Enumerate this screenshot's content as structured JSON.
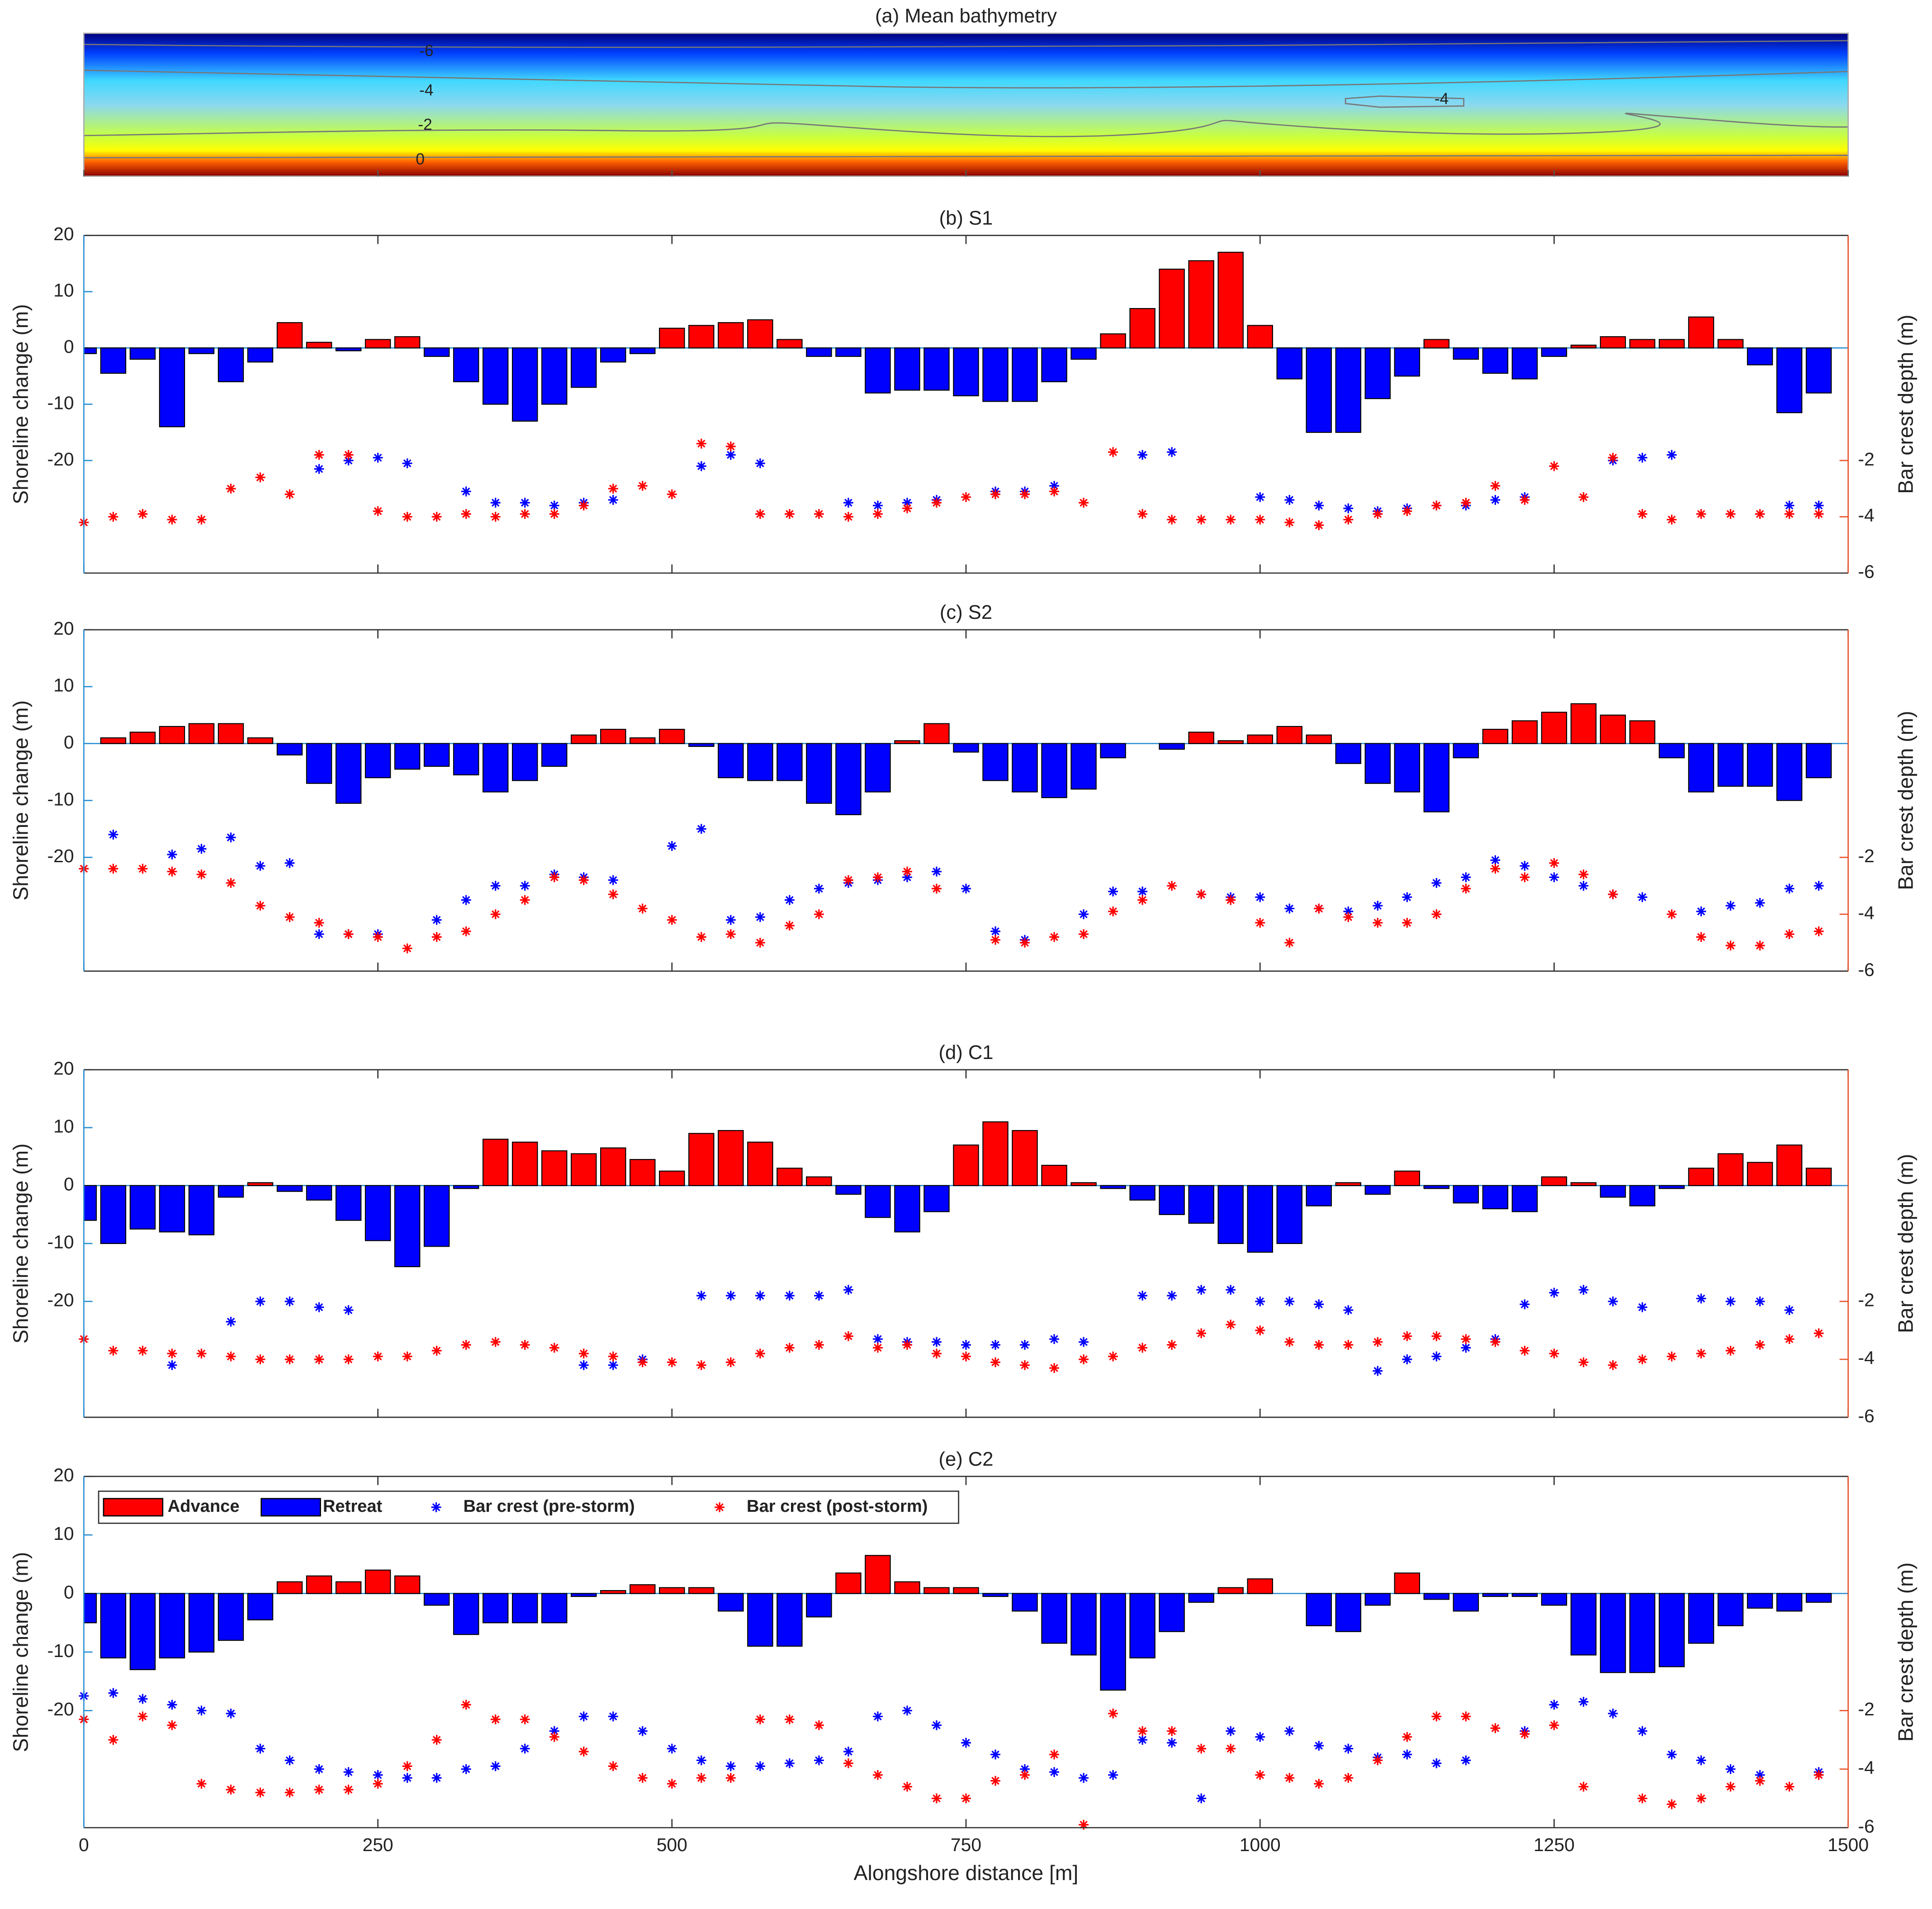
{
  "chart_data": [
    {
      "type": "heatmap",
      "title": "(a) Mean bathymetry",
      "contour_labels": [
        -6,
        -4,
        -2,
        0,
        -4
      ],
      "colormap": [
        "#00007a",
        "#0040ff",
        "#40d8ff",
        "#8ad8f0",
        "#c8ff40",
        "#ffff00",
        "#ff6000",
        "#8a0000"
      ],
      "xlim": [
        0,
        1500
      ],
      "xticks": [
        0,
        250,
        500,
        750,
        1000,
        1250,
        1500
      ]
    },
    {
      "type": "bar",
      "title": "(b) S1",
      "ylabel": "Shoreline change (m)",
      "y2label": "Bar crest depth (m)",
      "ycolor": "#2b8fd3",
      "y2color": "#e8552a",
      "advance_color": "#ff0000",
      "retreat_color": "#0000ff",
      "show_xtick_labels": false,
      "xlim": [
        0,
        1500
      ],
      "xticks": [
        0,
        250,
        500,
        750,
        1000,
        1250,
        1500
      ],
      "ylim": [
        -40,
        20
      ],
      "yticks": [
        -20,
        -10,
        0,
        10,
        20
      ],
      "y2lim": [
        -6,
        6
      ],
      "y2ticks": [
        -6,
        -4,
        -2
      ],
      "x": [
        0,
        25,
        50,
        75,
        100,
        125,
        150,
        175,
        200,
        225,
        250,
        275,
        300,
        325,
        350,
        375,
        400,
        425,
        450,
        475,
        500,
        525,
        550,
        575,
        600,
        625,
        650,
        675,
        700,
        725,
        750,
        775,
        800,
        825,
        850,
        875,
        900,
        925,
        950,
        975,
        1000,
        1025,
        1050,
        1075,
        1100,
        1125,
        1150,
        1175,
        1200,
        1225,
        1250,
        1275,
        1300,
        1325,
        1350,
        1375,
        1400,
        1425,
        1450,
        1475
      ],
      "values": [
        -1,
        -4.5,
        -2,
        -14,
        -1,
        -6,
        -2.5,
        4.5,
        1,
        -0.5,
        1.5,
        2,
        -1.5,
        -6,
        -10,
        -13,
        -10,
        -7,
        -2.5,
        -1,
        3.5,
        4,
        4.5,
        5,
        1.5,
        -1.5,
        -1.5,
        -8,
        -7.5,
        -7.5,
        -8.5,
        -9.5,
        -9.5,
        -6,
        -2,
        2.5,
        7,
        14,
        15.5,
        17,
        4,
        -5.5,
        -15,
        -15,
        -9,
        -5,
        1.5,
        -2,
        -4.5,
        -5.5,
        -1.5,
        0.5,
        2,
        1.5,
        1.5,
        5.5,
        1.5,
        -3,
        -11.5,
        -8
      ],
      "series": [
        {
          "color": "#0000ff",
          "axis": "y2",
          "values": [
            null,
            null,
            null,
            null,
            null,
            null,
            null,
            null,
            -2.3,
            -2.0,
            -1.9,
            -2.1,
            null,
            -3.1,
            -3.5,
            -3.5,
            -3.6,
            -3.5,
            -3.4,
            null,
            null,
            -2.2,
            -1.8,
            -2.1,
            null,
            null,
            -3.5,
            -3.6,
            -3.5,
            -3.4,
            null,
            -3.1,
            -3.1,
            -2.9,
            null,
            null,
            -1.8,
            -1.7,
            null,
            null,
            -3.3,
            -3.4,
            -3.6,
            -3.7,
            -3.8,
            -3.7,
            -3.6,
            -3.6,
            -3.4,
            -3.3,
            null,
            null,
            -2.0,
            -1.9,
            -1.8,
            null,
            null,
            null,
            -3.6,
            -3.6
          ]
        },
        {
          "color": "#ff0000",
          "axis": "y2",
          "values": [
            -4.2,
            -4.0,
            -3.9,
            -4.1,
            -4.1,
            -3.0,
            -2.6,
            -3.2,
            -1.8,
            -1.8,
            -3.8,
            -4.0,
            -4.0,
            -3.9,
            -4.0,
            -3.9,
            -3.9,
            -3.6,
            -3.0,
            -2.9,
            -3.2,
            -1.4,
            -1.5,
            -3.9,
            -3.9,
            -3.9,
            -4.0,
            -3.9,
            -3.7,
            -3.5,
            -3.3,
            -3.2,
            -3.2,
            -3.1,
            -3.5,
            -1.7,
            -3.9,
            -4.1,
            -4.1,
            -4.1,
            -4.1,
            -4.2,
            -4.3,
            -4.1,
            -3.9,
            -3.8,
            -3.6,
            -3.5,
            -2.9,
            -3.4,
            -2.2,
            -3.3,
            -1.9,
            -3.9,
            -4.1,
            -3.9,
            -3.9,
            -3.9,
            -3.9,
            -3.9
          ]
        }
      ]
    },
    {
      "type": "bar",
      "title": "(c) S2",
      "ylabel": "Shoreline change (m)",
      "y2label": "Bar crest depth (m)",
      "ycolor": "#2b8fd3",
      "y2color": "#e8552a",
      "advance_color": "#ff0000",
      "retreat_color": "#0000ff",
      "show_xtick_labels": false,
      "xlim": [
        0,
        1500
      ],
      "xticks": [
        0,
        250,
        500,
        750,
        1000,
        1250,
        1500
      ],
      "ylim": [
        -40,
        20
      ],
      "yticks": [
        -20,
        -10,
        0,
        10,
        20
      ],
      "y2lim": [
        -6,
        6
      ],
      "y2ticks": [
        -6,
        -4,
        -2
      ],
      "x": [
        0,
        25,
        50,
        75,
        100,
        125,
        150,
        175,
        200,
        225,
        250,
        275,
        300,
        325,
        350,
        375,
        400,
        425,
        450,
        475,
        500,
        525,
        550,
        575,
        600,
        625,
        650,
        675,
        700,
        725,
        750,
        775,
        800,
        825,
        850,
        875,
        900,
        925,
        950,
        975,
        1000,
        1025,
        1050,
        1075,
        1100,
        1125,
        1150,
        1175,
        1200,
        1225,
        1250,
        1275,
        1300,
        1325,
        1350,
        1375,
        1400,
        1425,
        1450,
        1475
      ],
      "values": [
        0,
        1,
        2,
        3,
        3.5,
        3.5,
        1,
        -2,
        -7,
        -10.5,
        -6,
        -4.5,
        -4,
        -5.5,
        -8.5,
        -6.5,
        -4,
        1.5,
        2.5,
        1,
        2.5,
        -0.5,
        -6,
        -6.5,
        -6.5,
        -10.5,
        -12.5,
        -8.5,
        0.5,
        3.5,
        -1.5,
        -6.5,
        -8.5,
        -9.5,
        -8,
        -2.5,
        0,
        -1,
        2,
        0.5,
        1.5,
        3,
        1.5,
        -3.5,
        -7,
        -8.5,
        -12,
        -2.5,
        2.5,
        4,
        5.5,
        7,
        5,
        4,
        -2.5,
        -8.5,
        -7.5,
        -7.5,
        -10,
        -6
      ],
      "series": [
        {
          "color": "#0000ff",
          "axis": "y2",
          "values": [
            null,
            -1.2,
            null,
            -1.9,
            -1.7,
            -1.3,
            -2.3,
            -2.2,
            -4.7,
            -4.7,
            -4.7,
            null,
            -4.2,
            -3.5,
            -3.0,
            -3.0,
            -2.6,
            -2.7,
            -2.8,
            null,
            -1.6,
            -1.0,
            -4.2,
            -4.1,
            -3.5,
            -3.1,
            -2.9,
            -2.8,
            -2.7,
            -2.5,
            -3.1,
            -4.6,
            -4.9,
            null,
            -4.0,
            -3.2,
            -3.2,
            null,
            -3.3,
            -3.4,
            -3.4,
            -3.8,
            -3.8,
            -3.9,
            -3.7,
            -3.4,
            -2.9,
            -2.7,
            -2.1,
            -2.3,
            -2.7,
            -3.0,
            -3.3,
            -3.4,
            null,
            -3.9,
            -3.7,
            -3.6,
            -3.1,
            -3.0
          ]
        },
        {
          "color": "#ff0000",
          "axis": "y2",
          "values": [
            -2.4,
            -2.4,
            -2.4,
            -2.5,
            -2.6,
            -2.9,
            -3.7,
            -4.1,
            -4.3,
            -4.7,
            -4.8,
            -5.2,
            -4.8,
            -4.6,
            -4.0,
            -3.5,
            -2.7,
            -2.8,
            -3.3,
            -3.8,
            -4.2,
            -4.8,
            -4.7,
            -5.0,
            -4.4,
            -4.0,
            -2.8,
            -2.7,
            -2.5,
            -3.1,
            null,
            -4.9,
            -5.0,
            -4.8,
            -4.7,
            -3.9,
            -3.5,
            -3.0,
            -3.3,
            -3.5,
            -4.3,
            -5.0,
            -3.8,
            -4.1,
            -4.3,
            -4.3,
            -4.0,
            -3.1,
            -2.4,
            -2.7,
            -2.2,
            -2.6,
            -3.3,
            null,
            -4.0,
            -4.8,
            -5.1,
            -5.1,
            -4.7,
            -4.6
          ]
        }
      ]
    },
    {
      "type": "bar",
      "title": "(d) C1",
      "ylabel": "Shoreline change (m)",
      "y2label": "Bar crest depth (m)",
      "ycolor": "#2b8fd3",
      "y2color": "#e8552a",
      "advance_color": "#ff0000",
      "retreat_color": "#0000ff",
      "show_xtick_labels": false,
      "xlim": [
        0,
        1500
      ],
      "xticks": [
        0,
        250,
        500,
        750,
        1000,
        1250,
        1500
      ],
      "ylim": [
        -40,
        20
      ],
      "yticks": [
        -20,
        -10,
        0,
        10,
        20
      ],
      "y2lim": [
        -6,
        6
      ],
      "y2ticks": [
        -6,
        -4,
        -2
      ],
      "x": [
        0,
        25,
        50,
        75,
        100,
        125,
        150,
        175,
        200,
        225,
        250,
        275,
        300,
        325,
        350,
        375,
        400,
        425,
        450,
        475,
        500,
        525,
        550,
        575,
        600,
        625,
        650,
        675,
        700,
        725,
        750,
        775,
        800,
        825,
        850,
        875,
        900,
        925,
        950,
        975,
        1000,
        1025,
        1050,
        1075,
        1100,
        1125,
        1150,
        1175,
        1200,
        1225,
        1250,
        1275,
        1300,
        1325,
        1350,
        1375,
        1400,
        1425,
        1450,
        1475
      ],
      "values": [
        -6,
        -10,
        -7.5,
        -8,
        -8.5,
        -2,
        0.5,
        -1,
        -2.5,
        -6,
        -9.5,
        -14,
        -10.5,
        -0.5,
        8,
        7.5,
        6,
        5.5,
        6.5,
        4.5,
        2.5,
        9,
        9.5,
        7.5,
        3,
        1.5,
        -1.5,
        -5.5,
        -8,
        -4.5,
        7,
        11,
        9.5,
        3.5,
        0.5,
        -0.5,
        -2.5,
        -5,
        -6.5,
        -10,
        -11.5,
        -10,
        -3.5,
        0.5,
        -1.5,
        2.5,
        -0.5,
        -3,
        -4,
        -4.5,
        1.5,
        0.5,
        -2,
        -3.5,
        -0.5,
        3,
        5.5,
        4,
        7,
        3
      ],
      "series": [
        {
          "color": "#0000ff",
          "axis": "y2",
          "values": [
            null,
            null,
            null,
            -4.2,
            null,
            -2.7,
            -2.0,
            -2.0,
            -2.2,
            -2.3,
            null,
            null,
            null,
            null,
            null,
            null,
            null,
            -4.2,
            -4.2,
            -4.0,
            null,
            -1.8,
            -1.8,
            -1.8,
            -1.8,
            -1.8,
            -1.6,
            -3.3,
            -3.4,
            -3.4,
            -3.5,
            -3.5,
            -3.5,
            -3.3,
            -3.4,
            null,
            -1.8,
            -1.8,
            -1.6,
            -1.6,
            -2.0,
            -2.0,
            -2.1,
            -2.3,
            -4.4,
            -4.0,
            -3.9,
            -3.6,
            -3.3,
            -2.1,
            -1.7,
            -1.6,
            -2.0,
            -2.2,
            null,
            -1.9,
            -2.0,
            -2.0,
            -2.3,
            null
          ]
        },
        {
          "color": "#ff0000",
          "axis": "y2",
          "values": [
            -3.3,
            -3.7,
            -3.7,
            -3.8,
            -3.8,
            -3.9,
            -4.0,
            -4.0,
            -4.0,
            -4.0,
            -3.9,
            -3.9,
            -3.7,
            -3.5,
            -3.4,
            -3.5,
            -3.6,
            -3.8,
            -3.9,
            -4.1,
            -4.1,
            -4.2,
            -4.1,
            -3.8,
            -3.6,
            -3.5,
            -3.2,
            -3.6,
            -3.5,
            -3.8,
            -3.9,
            -4.1,
            -4.2,
            -4.3,
            -4.0,
            -3.9,
            -3.6,
            -3.5,
            -3.1,
            -2.8,
            -3.0,
            -3.4,
            -3.5,
            -3.5,
            -3.4,
            -3.2,
            -3.2,
            -3.3,
            -3.4,
            -3.7,
            -3.8,
            -4.1,
            -4.2,
            -4.0,
            -3.9,
            -3.8,
            -3.7,
            -3.5,
            -3.3,
            -3.1
          ]
        }
      ]
    },
    {
      "type": "bar",
      "title": "(e) C2",
      "ylabel": "Shoreline change (m)",
      "y2label": "Bar crest depth (m)",
      "xlabel": "Alongshore distance [m]",
      "ycolor": "#2b8fd3",
      "y2color": "#e8552a",
      "advance_color": "#ff0000",
      "retreat_color": "#0000ff",
      "show_xtick_labels": true,
      "legend": "upper left",
      "bar_names": [
        "Advance",
        "Retreat"
      ],
      "xlim": [
        0,
        1500
      ],
      "xticks": [
        0,
        250,
        500,
        750,
        1000,
        1250,
        1500
      ],
      "ylim": [
        -40,
        20
      ],
      "yticks": [
        -20,
        -10,
        0,
        10,
        20
      ],
      "y2lim": [
        -6,
        6
      ],
      "y2ticks": [
        -6,
        -4,
        -2
      ],
      "x": [
        0,
        25,
        50,
        75,
        100,
        125,
        150,
        175,
        200,
        225,
        250,
        275,
        300,
        325,
        350,
        375,
        400,
        425,
        450,
        475,
        500,
        525,
        550,
        575,
        600,
        625,
        650,
        675,
        700,
        725,
        750,
        775,
        800,
        825,
        850,
        875,
        900,
        925,
        950,
        975,
        1000,
        1025,
        1050,
        1075,
        1100,
        1125,
        1150,
        1175,
        1200,
        1225,
        1250,
        1275,
        1300,
        1325,
        1350,
        1375,
        1400,
        1425,
        1450,
        1475
      ],
      "values": [
        -5,
        -11,
        -13,
        -11,
        -10,
        -8,
        -4.5,
        2,
        3,
        2,
        4,
        3,
        -2,
        -7,
        -5,
        -5,
        -5,
        -0.5,
        0.5,
        1.5,
        1,
        1,
        -3,
        -9,
        -9,
        -4,
        3.5,
        6.5,
        2,
        1,
        1,
        -0.5,
        -3,
        -8.5,
        -10.5,
        -16.5,
        -11,
        -6.5,
        -1.5,
        1,
        2.5,
        0,
        -5.5,
        -6.5,
        -2,
        3.5,
        -1,
        -3,
        -0.5,
        -0.5,
        -2,
        -10.5,
        -13.5,
        -13.5,
        -12.5,
        -8.5,
        -5.5,
        -2.5,
        -3,
        -1.5
      ],
      "series": [
        {
          "name": "Bar crest (pre-storm)",
          "color": "#0000ff",
          "axis": "y2",
          "values": [
            -1.5,
            -1.4,
            -1.6,
            -1.8,
            -2.0,
            -2.1,
            -3.3,
            -3.7,
            -4.0,
            -4.1,
            -4.2,
            -4.3,
            -4.3,
            -4.0,
            -3.9,
            -3.3,
            -2.7,
            -2.2,
            -2.2,
            -2.7,
            -3.3,
            -3.7,
            -3.9,
            -3.9,
            -3.8,
            -3.7,
            -3.4,
            -2.2,
            -2.0,
            -2.5,
            -3.1,
            -3.5,
            -4.0,
            -4.1,
            -4.3,
            -4.2,
            -3.0,
            -3.1,
            -5.0,
            -2.7,
            -2.9,
            -2.7,
            -3.2,
            -3.3,
            -3.6,
            -3.5,
            -3.8,
            -3.7,
            null,
            -2.7,
            -1.8,
            -1.7,
            -2.1,
            -2.7,
            -3.5,
            -3.7,
            -4.0,
            -4.2,
            null,
            -4.1
          ]
        },
        {
          "name": "Bar crest (post-storm)",
          "color": "#ff0000",
          "axis": "y2",
          "values": [
            -2.3,
            -3.0,
            -2.2,
            -2.5,
            -4.5,
            -4.7,
            -4.8,
            -4.8,
            -4.7,
            -4.7,
            -4.5,
            -3.9,
            -3.0,
            -1.8,
            -2.3,
            -2.3,
            -2.9,
            -3.4,
            -3.9,
            -4.3,
            -4.5,
            -4.3,
            -4.3,
            -2.3,
            -2.3,
            -2.5,
            -3.8,
            -4.2,
            -4.6,
            -5.0,
            -5.0,
            -4.4,
            -4.2,
            -3.5,
            -5.9,
            -2.1,
            -2.7,
            -2.7,
            -3.3,
            -3.3,
            -4.2,
            -4.3,
            -4.5,
            -4.3,
            -3.7,
            -2.9,
            -2.2,
            -2.2,
            -2.6,
            -2.8,
            -2.5,
            -4.6,
            null,
            -5.0,
            -5.2,
            -5.0,
            -4.6,
            -4.4,
            -4.6,
            -4.2
          ]
        }
      ]
    }
  ]
}
